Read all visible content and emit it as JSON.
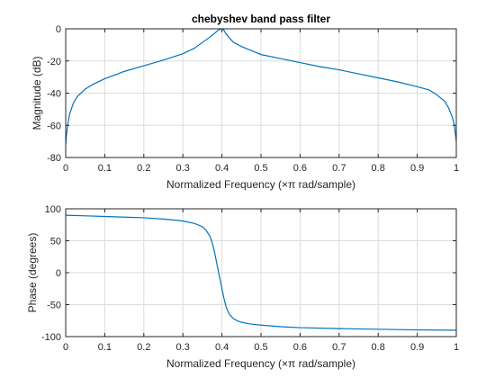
{
  "window": {
    "title": "chebyshev band pass filter"
  },
  "chart_data": [
    {
      "type": "line",
      "title": "chebyshev band pass filter",
      "xlabel": "Normalized Frequency  (×π rad/sample)",
      "ylabel": "Magnitude (dB)",
      "xlim": [
        0,
        1
      ],
      "ylim": [
        -80,
        0
      ],
      "xticks": [
        0,
        0.1,
        0.2,
        0.3,
        0.4,
        0.5,
        0.6,
        0.7,
        0.8,
        0.9,
        1
      ],
      "xticklabels": [
        "0",
        "0.1",
        "0.2",
        "0.3",
        "0.4",
        "0.5",
        "0.6",
        "0.7",
        "0.8",
        "0.9",
        "1"
      ],
      "yticks": [
        -80,
        -60,
        -40,
        -20,
        0
      ],
      "yticklabels": [
        "-80",
        "-60",
        "-40",
        "-20",
        "0"
      ],
      "grid": true,
      "color": "#0072BD",
      "x": [
        0,
        0.002,
        0.005,
        0.01,
        0.02,
        0.03,
        0.05,
        0.07,
        0.1,
        0.15,
        0.2,
        0.25,
        0.3,
        0.33,
        0.35,
        0.37,
        0.38,
        0.39,
        0.395,
        0.4,
        0.405,
        0.41,
        0.42,
        0.43,
        0.45,
        0.48,
        0.5,
        0.55,
        0.6,
        0.65,
        0.7,
        0.75,
        0.8,
        0.85,
        0.9,
        0.93,
        0.95,
        0.97,
        0.98,
        0.99,
        0.995,
        1
      ],
      "y": [
        -72,
        -66,
        -60,
        -53,
        -46,
        -42,
        -37.5,
        -34.5,
        -31,
        -26.5,
        -23,
        -19.5,
        -15.5,
        -12,
        -8.5,
        -5,
        -3,
        -1,
        -0.3,
        0,
        -0.8,
        -3,
        -6,
        -8.5,
        -11,
        -14,
        -16,
        -18.5,
        -21,
        -23.5,
        -25.5,
        -28,
        -30.5,
        -33,
        -36,
        -38,
        -41,
        -45,
        -49,
        -55,
        -60,
        -70
      ]
    },
    {
      "type": "line",
      "title": "",
      "xlabel": "Normalized Frequency  (×π rad/sample)",
      "ylabel": "Phase (degrees)",
      "xlim": [
        0,
        1
      ],
      "ylim": [
        -100,
        100
      ],
      "xticks": [
        0,
        0.1,
        0.2,
        0.3,
        0.4,
        0.5,
        0.6,
        0.7,
        0.8,
        0.9,
        1
      ],
      "xticklabels": [
        "0",
        "0.1",
        "0.2",
        "0.3",
        "0.4",
        "0.5",
        "0.6",
        "0.7",
        "0.8",
        "0.9",
        "1"
      ],
      "yticks": [
        -100,
        -50,
        0,
        50,
        100
      ],
      "yticklabels": [
        "-100",
        "-50",
        "0",
        "50",
        "100"
      ],
      "grid": true,
      "color": "#0072BD",
      "x": [
        0,
        0.05,
        0.1,
        0.15,
        0.2,
        0.25,
        0.3,
        0.33,
        0.35,
        0.36,
        0.37,
        0.375,
        0.38,
        0.385,
        0.39,
        0.395,
        0.4,
        0.405,
        0.41,
        0.415,
        0.42,
        0.43,
        0.44,
        0.45,
        0.47,
        0.5,
        0.55,
        0.6,
        0.7,
        0.8,
        0.9,
        1
      ],
      "y": [
        90,
        89,
        88,
        87,
        86,
        84,
        81,
        77,
        72,
        66,
        56,
        47,
        35,
        20,
        5,
        -10,
        -25,
        -40,
        -52,
        -60,
        -66,
        -72,
        -75.5,
        -77.5,
        -80,
        -82,
        -84.5,
        -86,
        -87.5,
        -88.5,
        -89.5,
        -90
      ]
    }
  ]
}
